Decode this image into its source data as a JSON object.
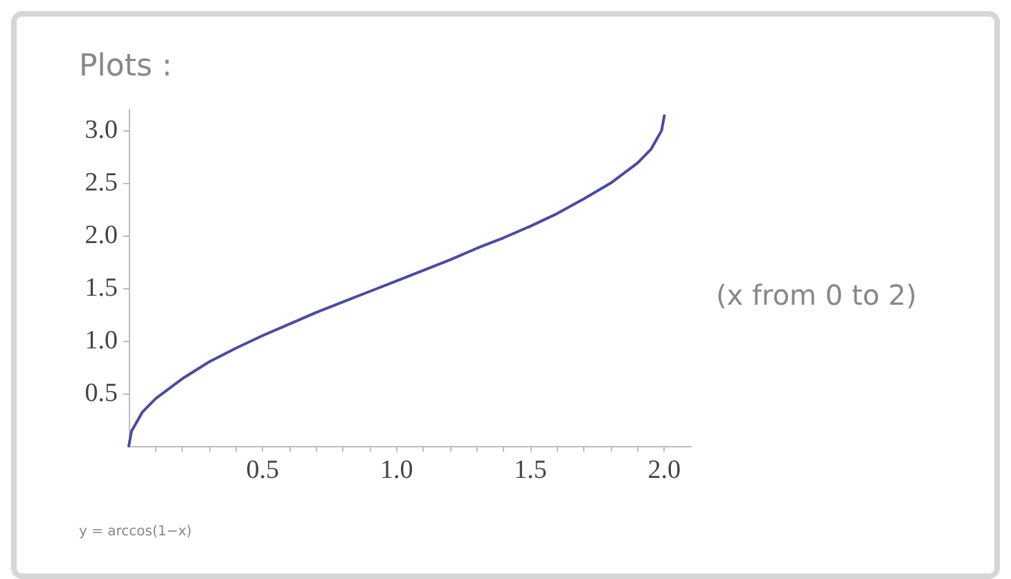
{
  "chart_data": {
    "type": "line",
    "title": "Plots :",
    "annotations": [
      "(x from 0 to 2)",
      "y = arccos(1−x)"
    ],
    "x": [
      0,
      0.01,
      0.05,
      0.1,
      0.2,
      0.3,
      0.4,
      0.5,
      0.6,
      0.7,
      0.8,
      0.9,
      1.0,
      1.1,
      1.2,
      1.3,
      1.4,
      1.5,
      1.6,
      1.7,
      1.8,
      1.9,
      1.95,
      1.99,
      2.0
    ],
    "series": [
      {
        "color": "#4a4aa6",
        "values": [
          0,
          0.14,
          0.32,
          0.45,
          0.64,
          0.8,
          0.93,
          1.05,
          1.16,
          1.27,
          1.37,
          1.47,
          1.57,
          1.67,
          1.77,
          1.88,
          1.98,
          2.09,
          2.21,
          2.35,
          2.5,
          2.69,
          2.82,
          3.0,
          3.14
        ]
      }
    ],
    "xlim": [
      0,
      2.1
    ],
    "ylim": [
      0,
      3.2
    ],
    "xticks": [
      {
        "value": 0.1,
        "label": null
      },
      {
        "value": 0.2,
        "label": null
      },
      {
        "value": 0.3,
        "label": null
      },
      {
        "value": 0.4,
        "label": null
      },
      {
        "value": 0.5,
        "label": "0.5"
      },
      {
        "value": 0.6,
        "label": null
      },
      {
        "value": 0.7,
        "label": null
      },
      {
        "value": 0.8,
        "label": null
      },
      {
        "value": 0.9,
        "label": null
      },
      {
        "value": 1,
        "label": "1.0"
      },
      {
        "value": 1.1,
        "label": null
      },
      {
        "value": 1.2,
        "label": null
      },
      {
        "value": 1.3,
        "label": null
      },
      {
        "value": 1.4,
        "label": null
      },
      {
        "value": 1.5,
        "label": "1.5"
      },
      {
        "value": 1.6,
        "label": null
      },
      {
        "value": 1.7,
        "label": null
      },
      {
        "value": 1.8,
        "label": null
      },
      {
        "value": 1.9,
        "label": null
      },
      {
        "value": 2,
        "label": "2.0"
      }
    ],
    "yticks": [
      {
        "value": 0.5,
        "label": "0.5"
      },
      {
        "value": 1,
        "label": "1.0"
      },
      {
        "value": 1.5,
        "label": "1.5"
      },
      {
        "value": 2,
        "label": "2.0"
      },
      {
        "value": 2.5,
        "label": "2.5"
      },
      {
        "value": 3,
        "label": "3.0"
      }
    ],
    "grid": false,
    "marker": "none",
    "line_style": "solid"
  }
}
